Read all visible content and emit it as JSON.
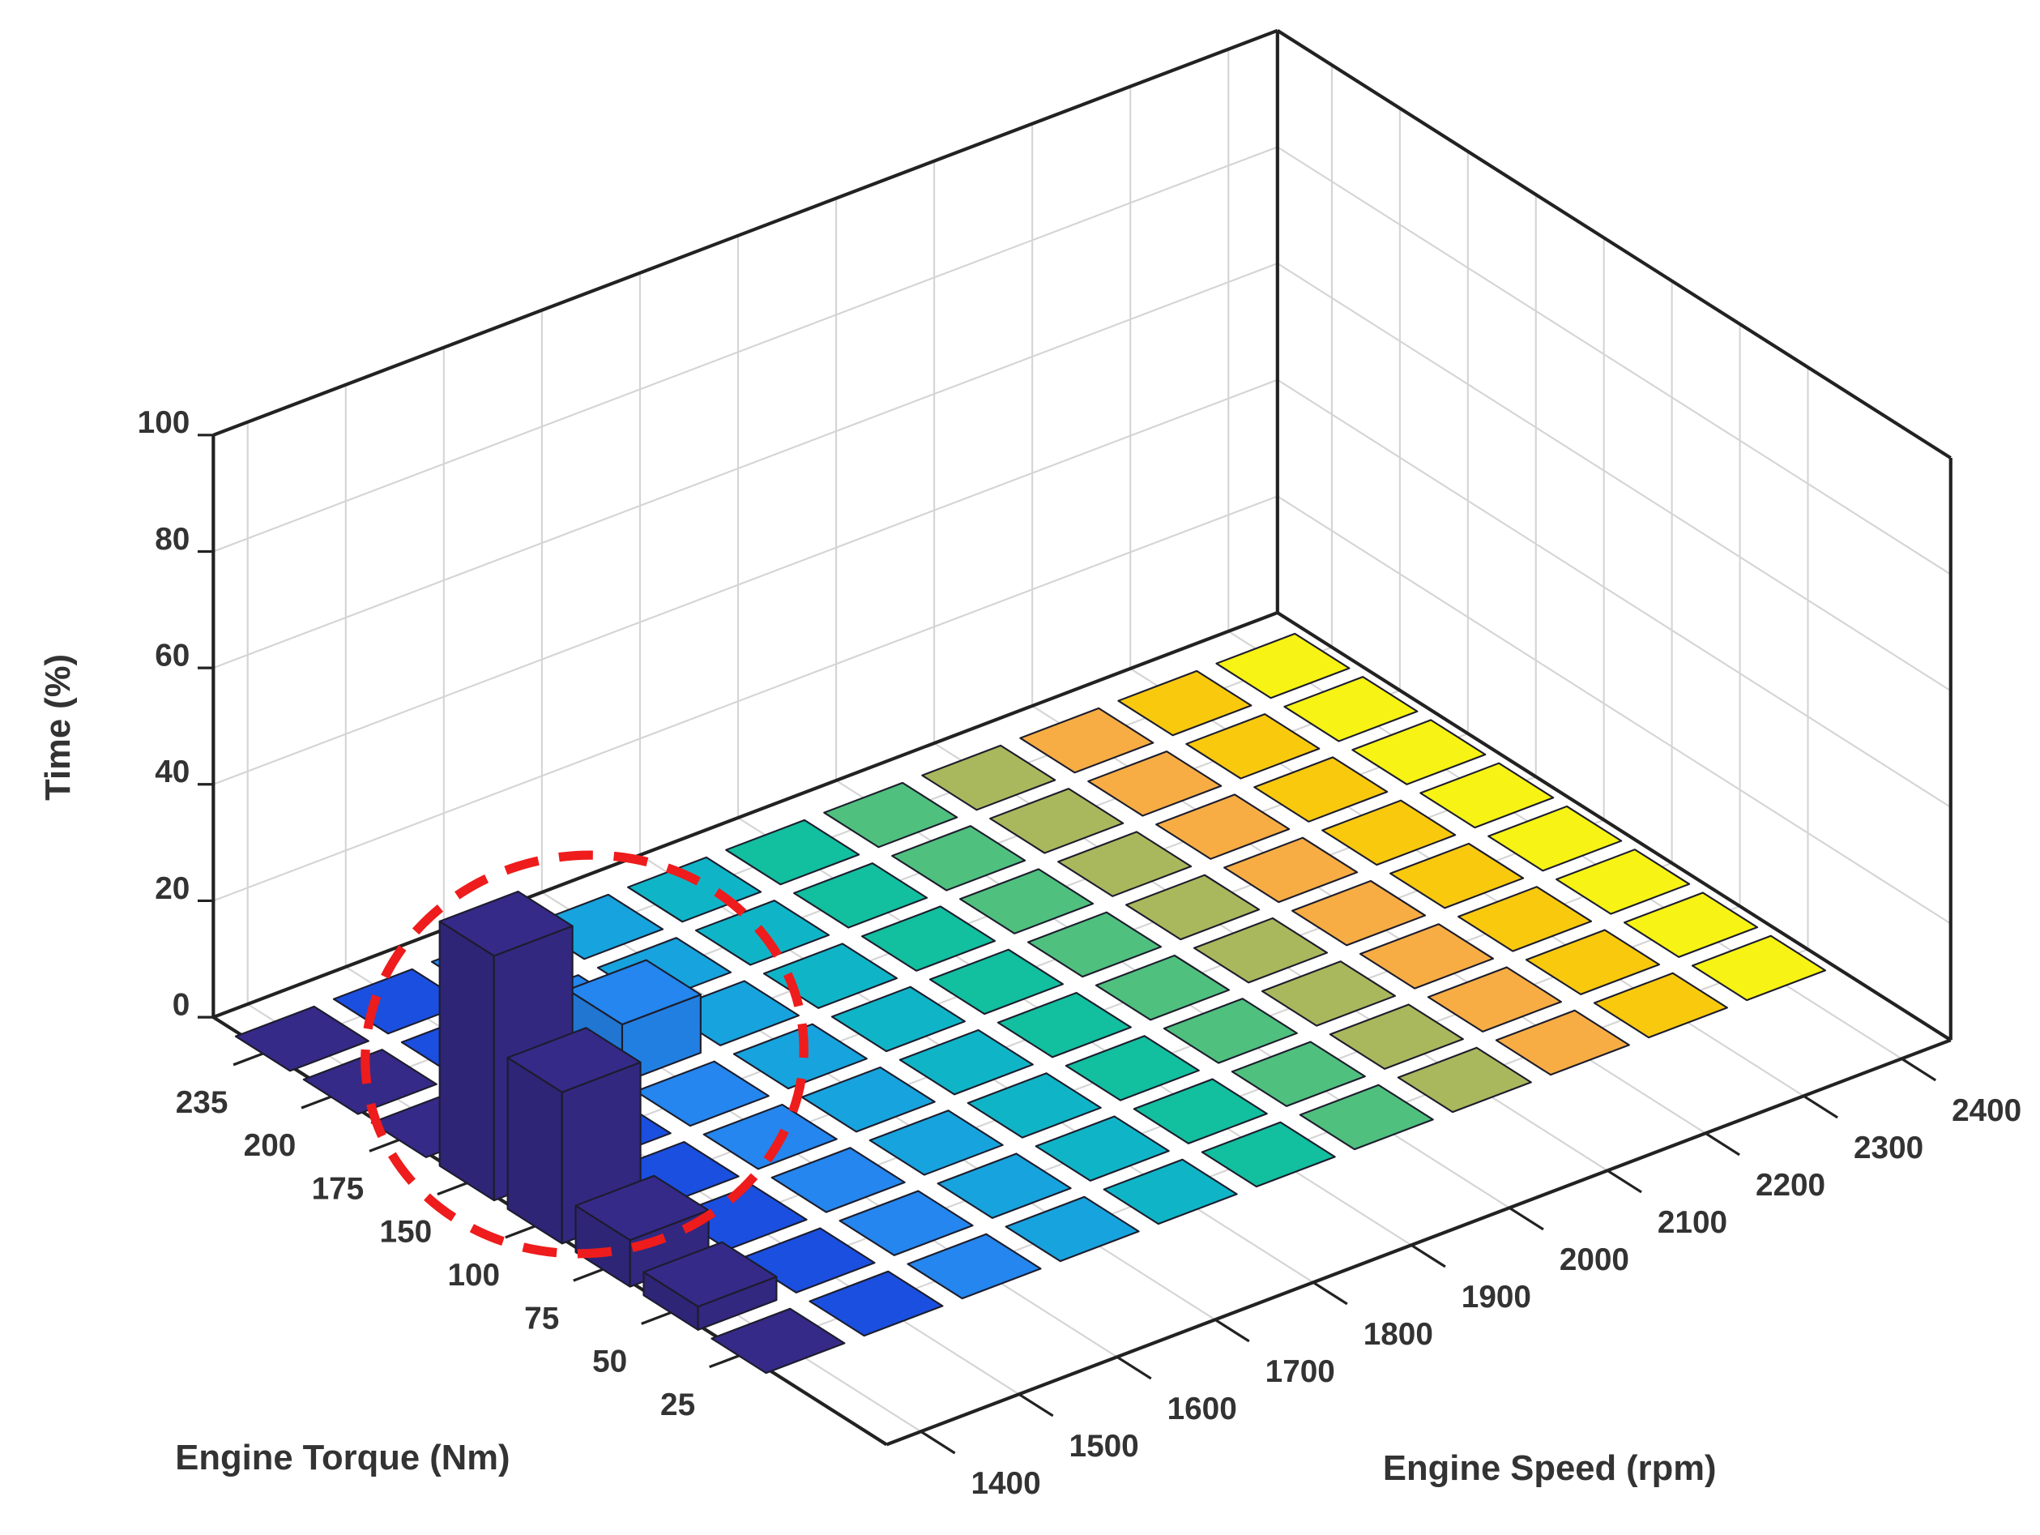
{
  "chart_data": {
    "type": "bar3d",
    "xlabel": "Engine Speed (rpm)",
    "ylabel": "Engine Torque (Nm)",
    "zlabel": "Time (%)",
    "x_categories": [
      1400,
      1500,
      1600,
      1700,
      1800,
      1900,
      2000,
      2100,
      2200,
      2300,
      2400
    ],
    "y_categories": [
      25,
      50,
      75,
      100,
      150,
      175,
      200,
      235
    ],
    "colors": [
      "#352a87",
      "#1a4fe0",
      "#2486ee",
      "#17a3dd",
      "#0fb5c7",
      "#12bf9e",
      "#4fc07e",
      "#a9b85c",
      "#f7ad44",
      "#f9c90e",
      "#f7f314"
    ],
    "values": [
      [
        0,
        0,
        0,
        0,
        0,
        0,
        0,
        0,
        0,
        0,
        0
      ],
      [
        4,
        0,
        0,
        0,
        0,
        0,
        0,
        0,
        0,
        0,
        0
      ],
      [
        8,
        0,
        0,
        0,
        0,
        0,
        0,
        0,
        0,
        0,
        0
      ],
      [
        26,
        0,
        0,
        0,
        0,
        0,
        0,
        0,
        0,
        0,
        0
      ],
      [
        42,
        0,
        0,
        0,
        0,
        0,
        0,
        0,
        0,
        0,
        0
      ],
      [
        0,
        0,
        10,
        0,
        0,
        0,
        0,
        0,
        0,
        0,
        0
      ],
      [
        0,
        0,
        0,
        0,
        0,
        0,
        0,
        0,
        0,
        0,
        0
      ],
      [
        0,
        0,
        0,
        0,
        0,
        0,
        0,
        0,
        0,
        0,
        0
      ]
    ],
    "zlim": [
      0,
      100
    ],
    "zticks": [
      0,
      20,
      40,
      60,
      80,
      100
    ],
    "grid": true
  }
}
